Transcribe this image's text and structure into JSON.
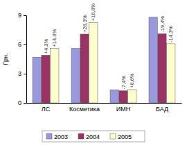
{
  "chart_data": {
    "type": "bar",
    "y_label": "Грн.",
    "categories": [
      "ЛС",
      "Косметика",
      "ИМН",
      "БАД"
    ],
    "series": [
      {
        "name": "2003",
        "color": "#9999dd",
        "values": [
          4.7,
          5.6,
          1.35,
          8.8
        ]
      },
      {
        "name": "2004",
        "color": "#993366",
        "values": [
          4.9,
          7.07,
          1.25,
          7.09
        ],
        "annotations": [
          "+4,3%",
          "+26,3%",
          "-7,4%",
          "-19,4%"
        ]
      },
      {
        "name": "2005",
        "color": "#ffffcc",
        "values": [
          5.6,
          8.26,
          1.36,
          6.08
        ],
        "annotations": [
          "+14,4%",
          "+16,8%",
          "+8,6%",
          "-14,3%"
        ]
      }
    ],
    "ylim": [
      0,
      9
    ],
    "yticks": [
      0,
      3,
      6,
      9
    ],
    "grid": false,
    "legend": "bottom"
  }
}
